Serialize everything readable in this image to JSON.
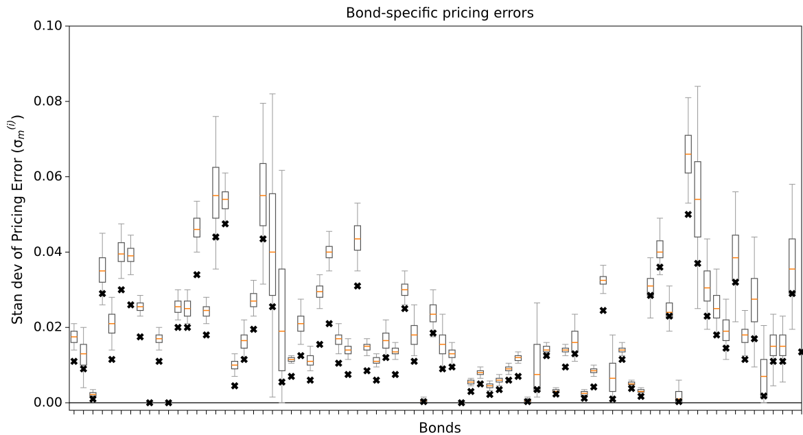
{
  "chart_data": {
    "type": "box",
    "title": "Bond-specific pricing errors",
    "xlabel": "Bonds",
    "ylabel": [
      "Stan dev of Pricing Error (σ",
      "m",
      "(i)",
      ")"
    ],
    "ylim": [
      -0.002,
      0.1
    ],
    "yticks": [
      {
        "value": 0,
        "label": "0.00"
      },
      {
        "value": 0.02,
        "label": "0.02"
      },
      {
        "value": 0.04,
        "label": "0.04"
      },
      {
        "value": 0.06,
        "label": "0.06"
      },
      {
        "value": 0.08,
        "label": "0.08"
      },
      {
        "value": 0.1,
        "label": "0.10"
      }
    ],
    "hline": 0,
    "box_color": "#555555",
    "whisker_color": "#999999",
    "median_color": "#ff7f0e",
    "marker_color": "#000000",
    "whislo": [
      0.014,
      0.004,
      0.0012,
      0.026,
      0.014,
      0.033,
      0.034,
      0.023,
      null,
      0.014,
      null,
      0.022,
      0.021,
      0.04,
      0.021,
      0.0355,
      0.047,
      0.007,
      0.011,
      0.023,
      0.0315,
      0.0015,
      0.0,
      0.0105,
      0.0155,
      0.0085,
      0.025,
      0.035,
      0.013,
      0.0115,
      0.035,
      0.0125,
      0.0095,
      0.0115,
      0.0115,
      0.026,
      0.0125,
      0.0,
      0.0175,
      0.009,
      0.01,
      null,
      0.0045,
      0.0065,
      0.0032,
      0.0045,
      0.0075,
      0.0105,
      0.0,
      0.0015,
      0.0125,
      0.002,
      0.0125,
      0.011,
      0.0015,
      0.007,
      0.029,
      0.0005,
      0.0125,
      0.0045,
      0.0022,
      0.0225,
      0.034,
      0.019,
      0.0,
      0.053,
      0.025,
      0.0195,
      0.0185,
      0.0115,
      0.0215,
      0.0125,
      0.0095,
      0.0,
      0.0045,
      0.0055,
      0.0195,
      null
    ],
    "q1": [
      0.016,
      0.01,
      0.0018,
      0.032,
      0.0185,
      0.0375,
      0.0375,
      0.0245,
      null,
      0.016,
      null,
      0.024,
      0.023,
      0.044,
      0.023,
      0.049,
      0.0515,
      0.009,
      0.0145,
      0.0255,
      0.047,
      0.0285,
      0.0085,
      0.011,
      0.019,
      0.01,
      0.028,
      0.0385,
      0.0155,
      0.013,
      0.0405,
      0.014,
      0.0105,
      0.0145,
      0.013,
      0.0285,
      0.0155,
      0.0002,
      0.0215,
      0.013,
      0.012,
      null,
      0.005,
      0.0075,
      0.004,
      0.0055,
      0.0085,
      0.0112,
      0.0002,
      0.003,
      0.0135,
      0.0027,
      0.0135,
      0.0135,
      0.002,
      0.008,
      0.0315,
      0.003,
      0.0135,
      0.0048,
      0.0028,
      0.0285,
      0.0385,
      0.0225,
      0.0002,
      0.061,
      0.044,
      0.027,
      0.0225,
      0.0165,
      0.0325,
      0.016,
      0.0215,
      0.0015,
      0.0125,
      0.0125,
      0.029,
      null
    ],
    "median": [
      0.0175,
      0.013,
      0.0022,
      0.035,
      0.021,
      0.0395,
      0.039,
      0.0255,
      null,
      0.017,
      null,
      0.0255,
      0.025,
      0.046,
      0.0245,
      0.055,
      0.054,
      0.01,
      0.0165,
      0.027,
      0.055,
      0.04,
      0.019,
      0.0115,
      0.021,
      0.011,
      0.0295,
      0.04,
      0.017,
      0.014,
      0.0435,
      0.015,
      0.011,
      0.0165,
      0.0135,
      0.03,
      0.018,
      0.0005,
      0.0235,
      0.0155,
      0.013,
      null,
      0.0055,
      0.008,
      0.0045,
      0.006,
      0.009,
      0.012,
      0.0005,
      0.0075,
      0.014,
      0.003,
      0.014,
      0.016,
      0.0025,
      0.0085,
      0.0325,
      0.0065,
      0.014,
      0.005,
      0.003,
      0.031,
      0.04,
      0.024,
      0.001,
      0.066,
      0.054,
      0.0305,
      0.025,
      0.019,
      0.0385,
      0.018,
      0.0275,
      0.007,
      0.015,
      0.015,
      0.0355,
      null
    ],
    "q3": [
      0.019,
      0.0155,
      0.0027,
      0.0385,
      0.0235,
      0.0425,
      0.041,
      0.0265,
      null,
      0.018,
      null,
      0.027,
      0.027,
      0.049,
      0.0255,
      0.0625,
      0.056,
      0.011,
      0.018,
      0.029,
      0.0635,
      0.0555,
      0.0355,
      0.012,
      0.023,
      0.0125,
      0.031,
      0.0415,
      0.018,
      0.015,
      0.047,
      0.0155,
      0.012,
      0.0185,
      0.0145,
      0.0315,
      0.0205,
      0.0008,
      0.026,
      0.018,
      0.014,
      null,
      0.006,
      0.0085,
      0.005,
      0.0065,
      0.0095,
      0.0125,
      0.001,
      0.0155,
      0.015,
      0.0035,
      0.0145,
      0.019,
      0.003,
      0.009,
      0.0335,
      0.0105,
      0.0145,
      0.0055,
      0.0035,
      0.033,
      0.043,
      0.0265,
      0.003,
      0.071,
      0.064,
      0.035,
      0.0285,
      0.022,
      0.0445,
      0.0195,
      0.033,
      0.0115,
      0.018,
      0.018,
      0.0435,
      null
    ],
    "whishi": [
      0.021,
      0.02,
      0.0035,
      0.045,
      0.028,
      0.0475,
      0.0445,
      0.0285,
      null,
      0.02,
      null,
      0.03,
      0.03,
      0.0535,
      0.028,
      0.076,
      0.061,
      0.013,
      0.022,
      0.0325,
      0.0795,
      0.082,
      0.0617,
      0.0125,
      0.0275,
      0.015,
      0.034,
      0.0455,
      0.021,
      0.017,
      0.053,
      0.017,
      0.013,
      0.022,
      0.016,
      0.035,
      0.026,
      0.0015,
      0.03,
      0.0235,
      0.016,
      null,
      0.0065,
      0.0095,
      0.0058,
      0.0075,
      0.0105,
      0.0135,
      0.0015,
      0.0265,
      0.016,
      0.004,
      0.0155,
      0.0235,
      0.0035,
      0.01,
      0.0365,
      0.018,
      0.016,
      0.006,
      0.004,
      0.0385,
      0.049,
      0.031,
      0.006,
      0.081,
      0.084,
      0.0435,
      0.0355,
      0.0275,
      0.056,
      0.0245,
      0.044,
      0.0205,
      0.0235,
      0.023,
      0.058,
      null
    ],
    "markers": [
      0.011,
      0.009,
      0.001,
      0.029,
      0.0115,
      0.03,
      0.026,
      0.0175,
      0.0,
      0.011,
      0.0,
      0.02,
      0.02,
      0.034,
      0.018,
      0.044,
      0.0475,
      0.0045,
      0.0115,
      0.0195,
      0.0435,
      0.0255,
      0.0055,
      0.007,
      0.0125,
      0.006,
      0.0155,
      0.021,
      0.0105,
      0.0075,
      0.031,
      0.0085,
      0.006,
      0.012,
      0.0075,
      0.025,
      0.011,
      0.0003,
      0.0185,
      0.009,
      0.0095,
      0.0,
      0.003,
      0.005,
      0.0022,
      0.0035,
      0.006,
      0.007,
      0.0003,
      0.0035,
      0.0125,
      0.0023,
      0.0095,
      0.013,
      0.0012,
      0.0042,
      0.0245,
      0.001,
      0.0115,
      0.0038,
      0.0017,
      0.0285,
      0.036,
      0.023,
      0.0003,
      0.05,
      0.037,
      0.023,
      0.018,
      0.0145,
      0.032,
      0.0115,
      0.017,
      0.0018,
      0.011,
      0.011,
      0.029,
      0.0135
    ]
  }
}
